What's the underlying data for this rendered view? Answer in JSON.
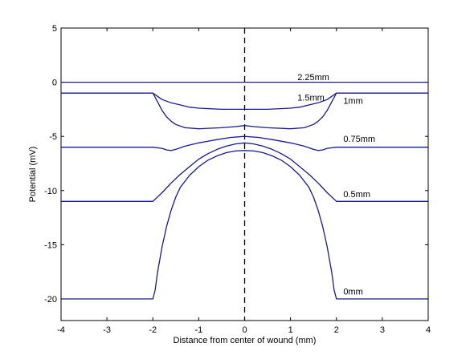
{
  "chart_data": {
    "type": "line",
    "title": "",
    "xlabel": "Distance from center of wound (mm)",
    "ylabel": "Potential (mV)",
    "xlim": [
      -4,
      4
    ],
    "ylim": [
      -22,
      5
    ],
    "xticks": [
      -4,
      -3,
      -2,
      -1,
      0,
      1,
      2,
      3,
      4
    ],
    "yticks": [
      5,
      0,
      -5,
      -10,
      -15,
      -20
    ],
    "grid": false,
    "line_color": "#1a1a8c",
    "wound_center_line": {
      "x": 0,
      "style": "dashed",
      "color": "#000000"
    },
    "series": [
      {
        "name": "2.25mm",
        "x": [
          -4,
          4
        ],
        "y": [
          0,
          0
        ]
      },
      {
        "name": "1.5mm",
        "x": [
          -4,
          -2.0,
          -1.9,
          -1.8,
          -1.6,
          -1.4,
          -1.2,
          -1.0,
          -0.5,
          0,
          0.5,
          1.0,
          1.2,
          1.4,
          1.6,
          1.8,
          1.9,
          2.0,
          4
        ],
        "y": [
          -1,
          -1,
          -1.3,
          -1.6,
          -1.9,
          -2.1,
          -2.3,
          -2.4,
          -2.5,
          -2.5,
          -2.5,
          -2.4,
          -2.3,
          -2.1,
          -1.9,
          -1.6,
          -1.3,
          -1,
          -1
        ]
      },
      {
        "name": "1mm",
        "x": [
          -4,
          -2.0,
          -1.9,
          -1.8,
          -1.7,
          -1.6,
          -1.5,
          -1.3,
          -1.0,
          -0.5,
          -0.2,
          0,
          0.2,
          0.5,
          1.0,
          1.3,
          1.5,
          1.6,
          1.7,
          1.8,
          1.9,
          2.0,
          4
        ],
        "y": [
          -1,
          -1,
          -1.8,
          -2.6,
          -3.2,
          -3.6,
          -3.9,
          -4.2,
          -4.3,
          -4.2,
          -4.1,
          -4.0,
          -4.1,
          -4.2,
          -4.3,
          -4.2,
          -3.9,
          -3.6,
          -3.2,
          -2.6,
          -1.8,
          -1,
          -1
        ]
      },
      {
        "name": "0.75mm",
        "x": [
          -4,
          -2.0,
          -1.8,
          -1.7,
          -1.6,
          -1.5,
          -1.3,
          -1.0,
          -0.6,
          -0.3,
          0,
          0.3,
          0.6,
          1.0,
          1.3,
          1.5,
          1.6,
          1.7,
          1.8,
          2.0,
          4
        ],
        "y": [
          -6,
          -6,
          -6.1,
          -6.25,
          -6.3,
          -6.2,
          -5.9,
          -5.6,
          -5.3,
          -5.1,
          -5.0,
          -5.1,
          -5.3,
          -5.6,
          -5.9,
          -6.2,
          -6.3,
          -6.25,
          -6.1,
          -6,
          -6
        ]
      },
      {
        "name": "0.5mm",
        "x": [
          -4,
          -2.0,
          -1.8,
          -1.6,
          -1.4,
          -1.2,
          -1.0,
          -0.8,
          -0.6,
          -0.4,
          -0.2,
          0,
          0.2,
          0.4,
          0.6,
          0.8,
          1.0,
          1.2,
          1.4,
          1.6,
          1.8,
          2.0,
          4
        ],
        "y": [
          -11,
          -11,
          -10.2,
          -9.3,
          -8.5,
          -7.8,
          -7.1,
          -6.6,
          -6.2,
          -5.9,
          -5.7,
          -5.6,
          -5.7,
          -5.9,
          -6.2,
          -6.6,
          -7.1,
          -7.8,
          -8.5,
          -9.3,
          -10.2,
          -11,
          -11
        ]
      },
      {
        "name": "0mm",
        "x": [
          -4,
          -2.0,
          -1.95,
          -1.9,
          -1.8,
          -1.7,
          -1.6,
          -1.5,
          -1.4,
          -1.2,
          -1.0,
          -0.8,
          -0.6,
          -0.4,
          -0.2,
          0,
          0.2,
          0.4,
          0.6,
          0.8,
          1.0,
          1.2,
          1.4,
          1.5,
          1.6,
          1.7,
          1.8,
          1.9,
          1.95,
          2.0,
          4
        ],
        "y": [
          -20,
          -20,
          -19.2,
          -17.6,
          -15.2,
          -13.3,
          -11.8,
          -10.6,
          -9.7,
          -8.6,
          -7.8,
          -7.2,
          -6.8,
          -6.5,
          -6.35,
          -6.3,
          -6.35,
          -6.5,
          -6.8,
          -7.2,
          -7.8,
          -8.6,
          -9.7,
          -10.6,
          -11.8,
          -13.3,
          -15.2,
          -17.6,
          -19.2,
          -20,
          -20
        ]
      }
    ],
    "annotations": [
      {
        "text": "2.25mm",
        "x": 1.15,
        "y": 0.5
      },
      {
        "text": "1.5mm",
        "x": 1.15,
        "y": -1.4
      },
      {
        "text": "1mm",
        "x": 2.15,
        "y": -1.7
      },
      {
        "text": "0.75mm",
        "x": 2.15,
        "y": -5.2
      },
      {
        "text": "0.5mm",
        "x": 2.15,
        "y": -10.3
      },
      {
        "text": "0mm",
        "x": 2.15,
        "y": -19.3
      }
    ]
  }
}
